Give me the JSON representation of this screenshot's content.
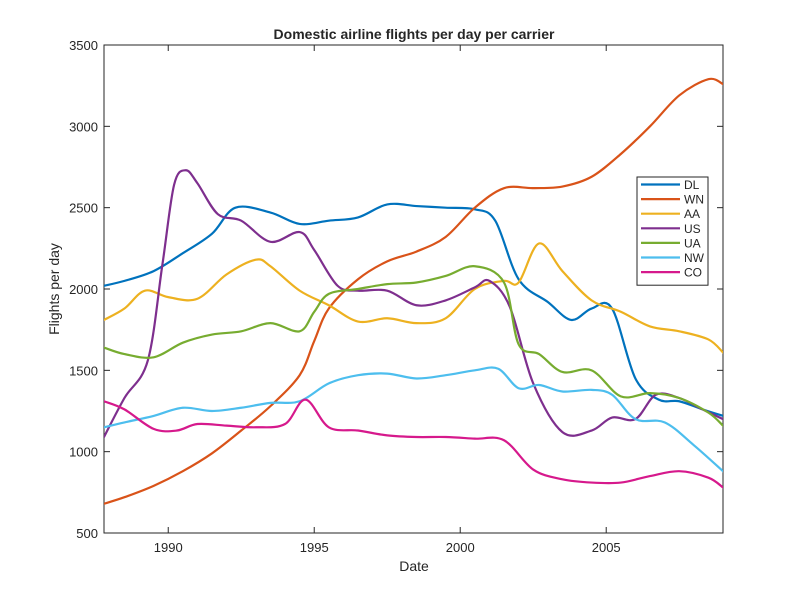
{
  "chart_data": {
    "type": "line",
    "title": "Domestic airline flights per day per carrier",
    "xlabel": "Date",
    "ylabel": "Flights per day",
    "xlim": [
      1987.8,
      2009.0
    ],
    "ylim": [
      500,
      3500
    ],
    "xticks": [
      1990,
      1995,
      2000,
      2005
    ],
    "yticks": [
      500,
      1000,
      1500,
      2000,
      2500,
      3000,
      3500
    ],
    "grid": false,
    "legend_position": "right",
    "series": [
      {
        "name": "DL",
        "color": "#0072BD",
        "x": [
          1987.8,
          1988.5,
          1989.5,
          1990.5,
          1991.5,
          1992.3,
          1993.5,
          1994.5,
          1995.5,
          1996.5,
          1997.5,
          1998.5,
          1999.5,
          2000.5,
          2001.2,
          2002.0,
          2003.0,
          2003.8,
          2004.5,
          2005.2,
          2006.0,
          2006.8,
          2007.5,
          2008.3,
          2009.0
        ],
        "y": [
          2020,
          2050,
          2110,
          2220,
          2340,
          2500,
          2470,
          2400,
          2420,
          2440,
          2520,
          2510,
          2500,
          2490,
          2420,
          2060,
          1920,
          1810,
          1880,
          1880,
          1450,
          1320,
          1310,
          1260,
          1220
        ]
      },
      {
        "name": "WN",
        "color": "#D95319",
        "x": [
          1987.8,
          1988.5,
          1989.5,
          1990.5,
          1991.5,
          1992.5,
          1993.5,
          1994.5,
          1995.0,
          1995.5,
          1996.5,
          1997.5,
          1998.5,
          1999.5,
          2000.5,
          2001.5,
          2002.5,
          2003.5,
          2004.5,
          2005.5,
          2006.5,
          2007.5,
          2008.5,
          2009.0
        ],
        "y": [
          680,
          720,
          790,
          880,
          990,
          1130,
          1280,
          1470,
          1680,
          1880,
          2060,
          2170,
          2230,
          2320,
          2500,
          2620,
          2620,
          2630,
          2690,
          2830,
          3000,
          3190,
          3290,
          3260
        ]
      },
      {
        "name": "AA",
        "color": "#EDB120",
        "x": [
          1987.8,
          1988.5,
          1989.2,
          1990.0,
          1991.0,
          1992.0,
          1993.0,
          1993.5,
          1994.5,
          1995.5,
          1996.5,
          1997.5,
          1998.5,
          1999.5,
          2000.5,
          2001.5,
          2002.0,
          2002.7,
          2003.5,
          2004.5,
          2005.5,
          2006.5,
          2007.5,
          2008.5,
          2009.0
        ],
        "y": [
          1810,
          1880,
          1990,
          1950,
          1940,
          2090,
          2180,
          2140,
          1990,
          1900,
          1800,
          1820,
          1790,
          1820,
          2000,
          2050,
          2040,
          2280,
          2110,
          1930,
          1860,
          1770,
          1740,
          1690,
          1610
        ]
      },
      {
        "name": "US",
        "color": "#7E2F8E",
        "x": [
          1987.8,
          1988.5,
          1989.3,
          1989.8,
          1990.2,
          1990.6,
          1991.0,
          1991.7,
          1992.5,
          1993.5,
          1994.5,
          1995.0,
          1995.8,
          1996.5,
          1997.5,
          1998.5,
          1999.5,
          2000.5,
          2001.0,
          2001.7,
          2002.5,
          2003.5,
          2004.5,
          2005.2,
          2006.0,
          2006.7,
          2007.5,
          2008.3,
          2009.0
        ],
        "y": [
          1090,
          1330,
          1560,
          2150,
          2640,
          2730,
          2650,
          2460,
          2420,
          2290,
          2350,
          2240,
          2020,
          1990,
          1990,
          1900,
          1930,
          2010,
          2050,
          1890,
          1420,
          1120,
          1130,
          1210,
          1200,
          1350,
          1330,
          1260,
          1200
        ]
      },
      {
        "name": "UA",
        "color": "#77AC30",
        "x": [
          1987.8,
          1988.5,
          1989.5,
          1990.5,
          1991.5,
          1992.5,
          1993.5,
          1994.5,
          1995.0,
          1995.5,
          1996.5,
          1997.5,
          1998.5,
          1999.5,
          2000.5,
          2001.5,
          2002.0,
          2002.7,
          2003.5,
          2004.5,
          2005.5,
          2006.5,
          2007.5,
          2008.5,
          2009.0
        ],
        "y": [
          1640,
          1600,
          1580,
          1670,
          1720,
          1740,
          1790,
          1740,
          1860,
          1970,
          2000,
          2030,
          2040,
          2080,
          2140,
          2040,
          1660,
          1600,
          1490,
          1500,
          1340,
          1360,
          1330,
          1240,
          1160
        ]
      },
      {
        "name": "NW",
        "color": "#4DBEEE",
        "x": [
          1987.8,
          1988.5,
          1989.5,
          1990.5,
          1991.5,
          1992.5,
          1993.5,
          1994.5,
          1995.5,
          1996.5,
          1997.5,
          1998.5,
          1999.5,
          2000.5,
          2001.3,
          2002.0,
          2002.7,
          2003.5,
          2004.5,
          2005.2,
          2006.0,
          2007.0,
          2008.0,
          2009.0
        ],
        "y": [
          1150,
          1180,
          1220,
          1270,
          1250,
          1270,
          1300,
          1310,
          1420,
          1470,
          1480,
          1450,
          1470,
          1500,
          1510,
          1390,
          1410,
          1370,
          1380,
          1350,
          1200,
          1180,
          1040,
          880
        ]
      },
      {
        "name": "CO",
        "color": "#D6198C",
        "x": [
          1987.8,
          1988.5,
          1989.5,
          1990.3,
          1991.0,
          1992.0,
          1993.0,
          1994.0,
          1994.7,
          1995.5,
          1996.5,
          1997.5,
          1998.5,
          1999.5,
          2000.5,
          2001.5,
          2002.5,
          2003.5,
          2004.5,
          2005.5,
          2006.5,
          2007.5,
          2008.5,
          2009.0
        ],
        "y": [
          1310,
          1260,
          1140,
          1130,
          1170,
          1160,
          1150,
          1170,
          1320,
          1150,
          1130,
          1100,
          1090,
          1090,
          1080,
          1070,
          890,
          830,
          810,
          810,
          850,
          880,
          840,
          780
        ]
      }
    ]
  }
}
